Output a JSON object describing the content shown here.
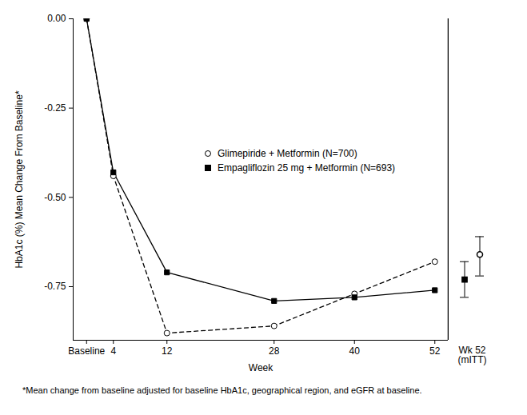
{
  "chart_data": {
    "type": "line",
    "y_label": "HbA1c (%) Mean Change From Baseline*",
    "x_label": "Week",
    "note": "*Mean change from baseline adjusted for baseline HbA1c, geographical region, and eGFR at baseline.",
    "x": [
      0,
      4,
      12,
      28,
      40,
      52
    ],
    "xlim": [
      -2,
      54
    ],
    "xticks": [
      {
        "value": 0,
        "label": "Baseline"
      },
      4,
      12,
      28,
      40,
      52
    ],
    "ylim": [
      -0.9,
      0
    ],
    "yticks": [
      {
        "value": 0,
        "label": "0.00"
      },
      -0.25,
      {
        "value": -0.5,
        "label": "-0.50"
      },
      -0.75
    ],
    "legend": "center",
    "wk52_mitt_label": "Wk 52\n(mITT)",
    "series": [
      {
        "name": "Glimepiride + Metformin (N=700)",
        "color": "#000000",
        "marker": "open_circle",
        "line_style": "dashed",
        "values": [
          0,
          -0.44,
          -0.88,
          -0.86,
          -0.77,
          -0.68
        ],
        "wk52_mitt": {
          "value": -0.66,
          "low": -0.72,
          "high": -0.61
        }
      },
      {
        "name": "Empagliflozin 25 mg + Metformin (N=693)",
        "color": "#000000",
        "marker": "square",
        "line_style": "solid",
        "values": [
          0,
          -0.43,
          -0.71,
          -0.79,
          -0.78,
          -0.76
        ],
        "wk52_mitt": {
          "value": -0.73,
          "low": -0.78,
          "high": -0.68
        }
      }
    ]
  }
}
